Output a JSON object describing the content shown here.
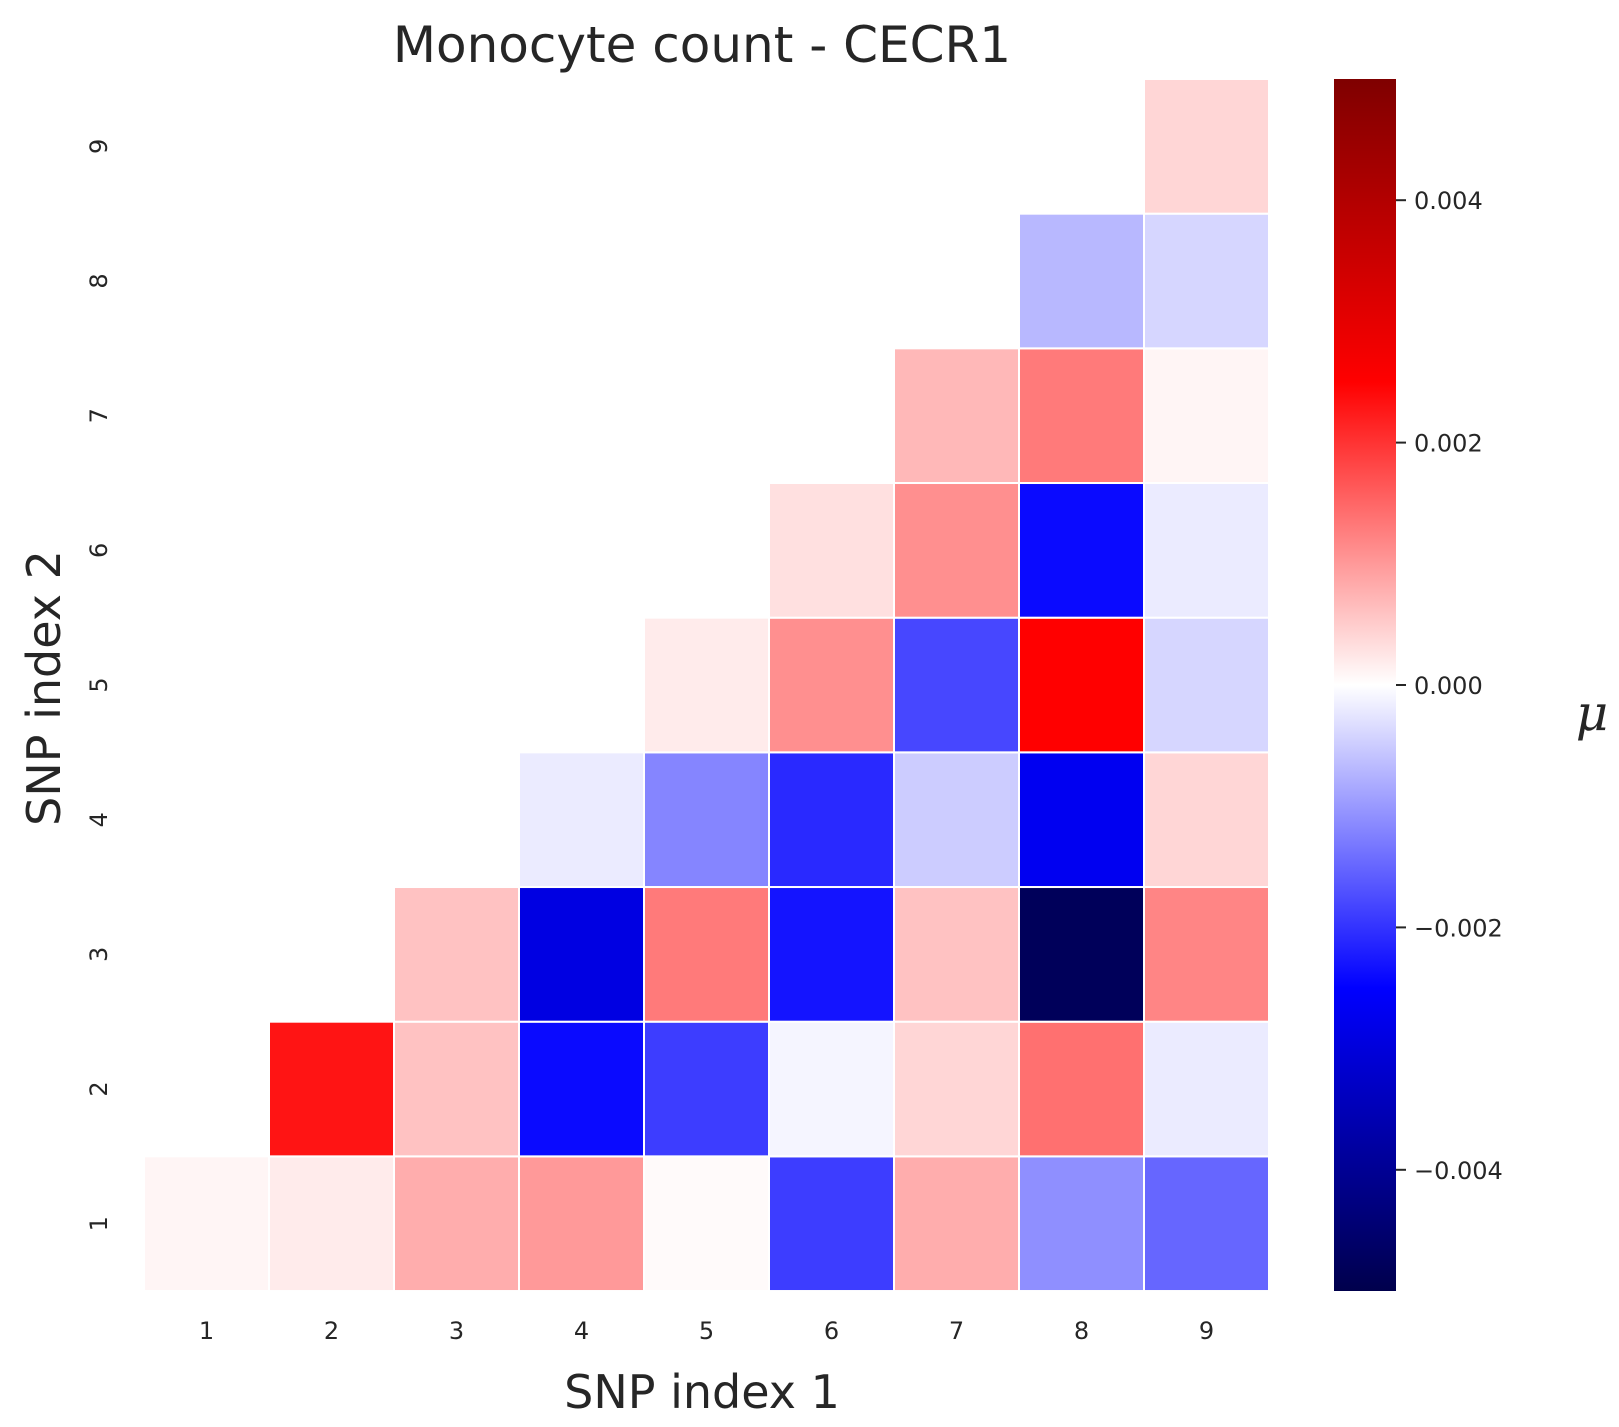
{
  "chart_data": {
    "type": "heatmap",
    "title": "Monocyte count - CECR1",
    "xlabel": "SNP index 1",
    "ylabel": "SNP index 2",
    "x_ticks": [
      "1",
      "2",
      "3",
      "4",
      "5",
      "6",
      "7",
      "8",
      "9"
    ],
    "y_ticks": [
      "1",
      "2",
      "3",
      "4",
      "5",
      "6",
      "7",
      "8",
      "9"
    ],
    "colorbar": {
      "label": "μ",
      "range": [
        -0.005,
        0.005
      ],
      "ticks": [
        0.004,
        0.002,
        0.0,
        -0.002,
        -0.004
      ],
      "tick_labels": [
        "0.004",
        "0.002",
        "0.000",
        "−0.002",
        "−0.004"
      ],
      "colormap": "seismic"
    },
    "mask": "lower-right triangle (y > x) empty",
    "cells": [
      {
        "x": 1,
        "y": 1,
        "value": 0.0001
      },
      {
        "x": 2,
        "y": 1,
        "value": 0.0002
      },
      {
        "x": 3,
        "y": 1,
        "value": 0.0008
      },
      {
        "x": 4,
        "y": 1,
        "value": 0.001
      },
      {
        "x": 5,
        "y": 1,
        "value": 5e-05
      },
      {
        "x": 6,
        "y": 1,
        "value": -0.0019
      },
      {
        "x": 7,
        "y": 1,
        "value": 0.0008
      },
      {
        "x": 8,
        "y": 1,
        "value": -0.0011
      },
      {
        "x": 9,
        "y": 1,
        "value": -0.0015
      },
      {
        "x": 2,
        "y": 2,
        "value": 0.0023
      },
      {
        "x": 3,
        "y": 2,
        "value": 0.0006
      },
      {
        "x": 4,
        "y": 2,
        "value": -0.0024
      },
      {
        "x": 5,
        "y": 2,
        "value": -0.0019
      },
      {
        "x": 6,
        "y": 2,
        "value": -0.0001
      },
      {
        "x": 7,
        "y": 2,
        "value": 0.0004
      },
      {
        "x": 8,
        "y": 2,
        "value": 0.0014
      },
      {
        "x": 9,
        "y": 2,
        "value": -0.0002
      },
      {
        "x": 3,
        "y": 3,
        "value": 0.0006
      },
      {
        "x": 4,
        "y": 3,
        "value": -0.0029
      },
      {
        "x": 5,
        "y": 3,
        "value": 0.0013
      },
      {
        "x": 6,
        "y": 3,
        "value": -0.0023
      },
      {
        "x": 7,
        "y": 3,
        "value": 0.0006
      },
      {
        "x": 8,
        "y": 3,
        "value": -0.0048
      },
      {
        "x": 9,
        "y": 3,
        "value": 0.0012
      },
      {
        "x": 4,
        "y": 4,
        "value": -0.0002
      },
      {
        "x": 5,
        "y": 4,
        "value": -0.0012
      },
      {
        "x": 6,
        "y": 4,
        "value": -0.0021
      },
      {
        "x": 7,
        "y": 4,
        "value": -0.0005
      },
      {
        "x": 8,
        "y": 4,
        "value": -0.0027
      },
      {
        "x": 9,
        "y": 4,
        "value": 0.0004
      },
      {
        "x": 5,
        "y": 5,
        "value": 0.0002
      },
      {
        "x": 6,
        "y": 5,
        "value": 0.0011
      },
      {
        "x": 7,
        "y": 5,
        "value": -0.0018
      },
      {
        "x": 8,
        "y": 5,
        "value": 0.0025
      },
      {
        "x": 9,
        "y": 5,
        "value": -0.0004
      },
      {
        "x": 6,
        "y": 6,
        "value": 0.0003
      },
      {
        "x": 7,
        "y": 6,
        "value": 0.0011
      },
      {
        "x": 8,
        "y": 6,
        "value": -0.0024
      },
      {
        "x": 9,
        "y": 6,
        "value": -0.0002
      },
      {
        "x": 7,
        "y": 7,
        "value": 0.0007
      },
      {
        "x": 8,
        "y": 7,
        "value": 0.0013
      },
      {
        "x": 9,
        "y": 7,
        "value": 0.0001
      },
      {
        "x": 8,
        "y": 8,
        "value": -0.0007
      },
      {
        "x": 9,
        "y": 8,
        "value": -0.0004
      },
      {
        "x": 9,
        "y": 9,
        "value": 0.0004
      }
    ]
  }
}
